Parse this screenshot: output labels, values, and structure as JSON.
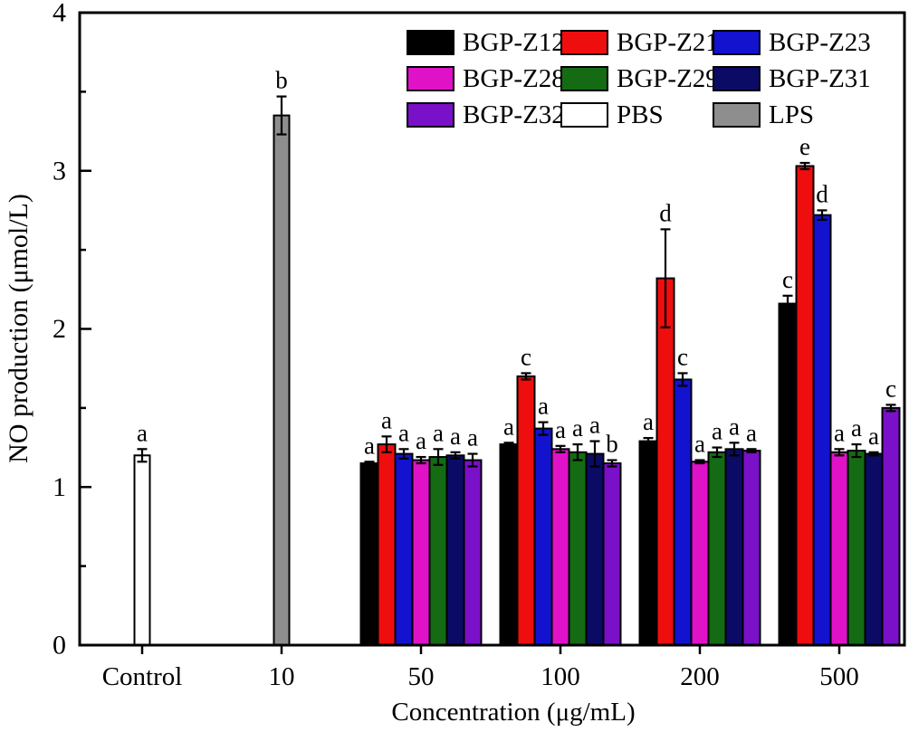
{
  "figure_type": "grouped-bar-chart-with-error-bars",
  "chart_data": {
    "type": "bar",
    "title": "",
    "xlabel": "Concentration (μg/mL)",
    "ylabel": "NO production (μmol/L)",
    "ylim": [
      0,
      4
    ],
    "ytick_step": 1,
    "yminor_step": 0.5,
    "grid": "off",
    "legend_position": "top-center-right",
    "legend_columns": 3,
    "categories": [
      "Control",
      "10",
      "50",
      "100",
      "200",
      "500"
    ],
    "series": [
      {
        "name": "BGP-Z12",
        "color": "#000000",
        "values": [
          null,
          null,
          1.15,
          1.27,
          1.29,
          2.16
        ],
        "errors": [
          null,
          null,
          0.01,
          0.01,
          0.02,
          0.05
        ],
        "letters": [
          null,
          null,
          "a",
          "a",
          "a",
          "c"
        ]
      },
      {
        "name": "BGP-Z21",
        "color": "#EE0E0E",
        "values": [
          null,
          null,
          1.27,
          1.7,
          2.32,
          3.03
        ],
        "errors": [
          null,
          null,
          0.05,
          0.02,
          0.31,
          0.02
        ],
        "letters": [
          null,
          null,
          "a",
          "c",
          "d",
          "e"
        ]
      },
      {
        "name": "BGP-Z23",
        "color": "#1212CF",
        "values": [
          null,
          null,
          1.21,
          1.37,
          1.68,
          2.72
        ],
        "errors": [
          null,
          null,
          0.03,
          0.04,
          0.04,
          0.03
        ],
        "letters": [
          null,
          null,
          "a",
          "a",
          "c",
          "d"
        ]
      },
      {
        "name": "BGP-Z28",
        "color": "#E012C8",
        "values": [
          null,
          null,
          1.17,
          1.24,
          1.16,
          1.22
        ],
        "errors": [
          null,
          null,
          0.02,
          0.02,
          0.01,
          0.02
        ],
        "letters": [
          null,
          null,
          "a",
          "a",
          "a",
          "a"
        ]
      },
      {
        "name": "BGP-Z29",
        "color": "#146B14",
        "values": [
          null,
          null,
          1.19,
          1.22,
          1.22,
          1.23
        ],
        "errors": [
          null,
          null,
          0.05,
          0.05,
          0.03,
          0.04
        ],
        "letters": [
          null,
          null,
          "a",
          "a",
          "a",
          "a"
        ]
      },
      {
        "name": "BGP-Z31",
        "color": "#0B0B66",
        "values": [
          null,
          null,
          1.2,
          1.21,
          1.24,
          1.21
        ],
        "errors": [
          null,
          null,
          0.02,
          0.08,
          0.04,
          0.01
        ],
        "letters": [
          null,
          null,
          "a",
          "a",
          "a",
          "a"
        ]
      },
      {
        "name": "BGP-Z32",
        "color": "#7A10C8",
        "values": [
          null,
          null,
          1.17,
          1.15,
          1.23,
          1.5
        ],
        "errors": [
          null,
          null,
          0.04,
          0.02,
          0.01,
          0.02
        ],
        "letters": [
          null,
          null,
          "a",
          "b",
          "a",
          "c"
        ]
      },
      {
        "name": "PBS",
        "color": "#FFFFFF",
        "values": [
          1.2,
          null,
          null,
          null,
          null,
          null
        ],
        "errors": [
          0.04,
          null,
          null,
          null,
          null,
          null
        ],
        "letters": [
          "a",
          null,
          null,
          null,
          null,
          null
        ]
      },
      {
        "name": "LPS",
        "color": "#8E8E8E",
        "values": [
          null,
          3.35,
          null,
          null,
          null,
          null
        ],
        "errors": [
          null,
          0.12,
          null,
          null,
          null,
          null
        ],
        "letters": [
          null,
          "b",
          null,
          null,
          null,
          null
        ]
      }
    ]
  }
}
